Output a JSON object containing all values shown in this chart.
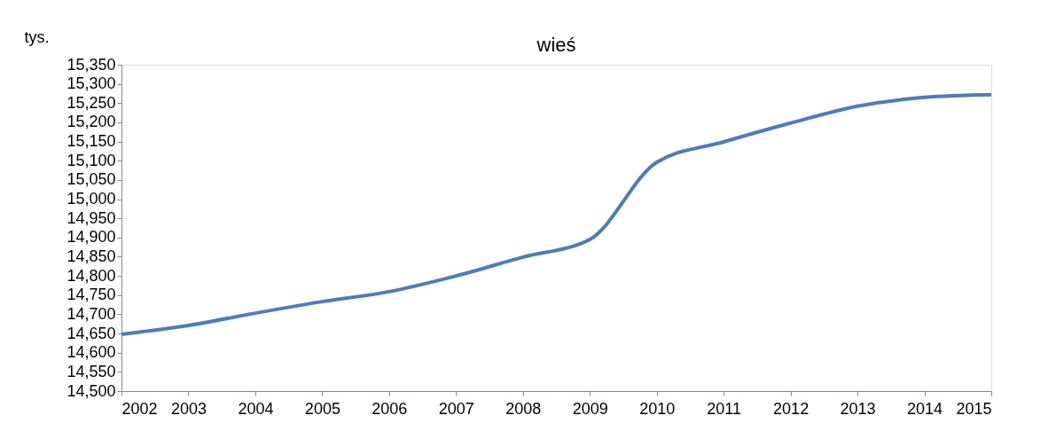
{
  "chart_data": {
    "type": "line",
    "title": "wieś",
    "ylabel": "tys.",
    "categories": [
      "2002",
      "2003",
      "2004",
      "2005",
      "2006",
      "2007",
      "2008",
      "2009",
      "2010",
      "2011",
      "2012",
      "2013",
      "2014",
      "2015"
    ],
    "series": [
      {
        "color": "#4a7ebb",
        "values": [
          14648,
          14671,
          14703,
          14733,
          14759,
          14800,
          14849,
          14895,
          15096,
          15149,
          15198,
          15242,
          15265,
          15272
        ]
      }
    ],
    "ylim": [
      14500,
      15350
    ],
    "yticks": [
      {
        "value": 14500,
        "label": "14,500"
      },
      {
        "value": 14550,
        "label": "14,550"
      },
      {
        "value": 14600,
        "label": "14,600"
      },
      {
        "value": 14650,
        "label": "14,650"
      },
      {
        "value": 14700,
        "label": "14,700"
      },
      {
        "value": 14750,
        "label": "14,750"
      },
      {
        "value": 14800,
        "label": "14,800"
      },
      {
        "value": 14850,
        "label": "14,850"
      },
      {
        "value": 14900,
        "label": "14,900"
      },
      {
        "value": 14950,
        "label": "14,950"
      },
      {
        "value": 15000,
        "label": "15,000"
      },
      {
        "value": 15050,
        "label": "15,050"
      },
      {
        "value": 15100,
        "label": "15,100"
      },
      {
        "value": 15150,
        "label": "15,150"
      },
      {
        "value": 15200,
        "label": "15,200"
      },
      {
        "value": 15250,
        "label": "15,250"
      },
      {
        "value": 15300,
        "label": "15,300"
      },
      {
        "value": 15350,
        "label": "15,350"
      }
    ],
    "grid": false,
    "marker": "none",
    "line_style": "solid"
  }
}
